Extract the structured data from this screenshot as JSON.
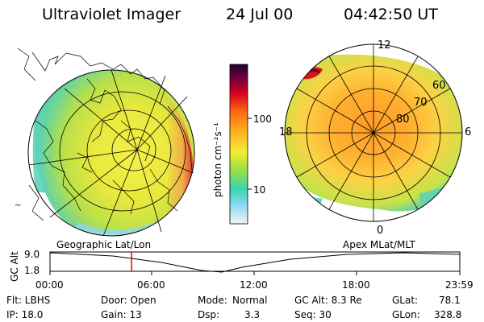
{
  "header": {
    "instrument": "Ultraviolet Imager",
    "date": "24 Jul 00",
    "time": "04:42:50 UT"
  },
  "colorbar": {
    "unit_label": "photon cm⁻²s⁻¹",
    "tick_labels": [
      "100",
      "10"
    ]
  },
  "left_map": {
    "caption": "Geographic Lat/Lon",
    "side_mark": "~"
  },
  "right_map": {
    "caption": "Apex MLat/MLT",
    "mlt_labels": {
      "top": "12",
      "left": "18",
      "right": "6",
      "bottom": "0"
    },
    "lat_labels": [
      "60",
      "70",
      "80"
    ]
  },
  "timeline": {
    "axis_label": "GC Alt",
    "y_labels": [
      "9.0",
      "1.8"
    ],
    "x_labels": [
      "00:00",
      "06:00",
      "12:00",
      "18:00",
      "23:59"
    ],
    "marker_color": "#dd0000",
    "marker_fraction": 0.199
  },
  "info": {
    "row1": {
      "flt": "Flt: LBHS",
      "door": "Door: Open",
      "mode_label": "Mode:",
      "mode_value": "Normal",
      "gcalt": "GC Alt: 8.3 Re",
      "glat_label": "GLat:",
      "glat_value": "78.1"
    },
    "row2": {
      "ip": "IP: 18.0",
      "gain": "Gain: 13",
      "dsp_label": "Dsp:",
      "dsp_value": "3.3",
      "seq": "Seq: 30",
      "glon_label": "GLon:",
      "glon_value": "328.8"
    }
  }
}
